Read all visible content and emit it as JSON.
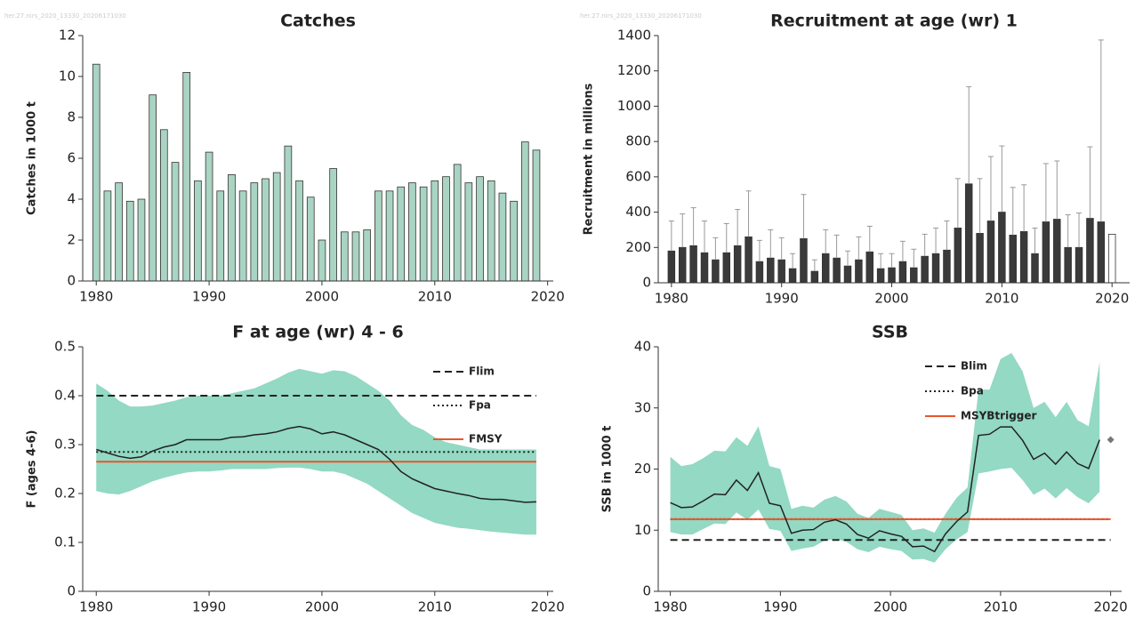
{
  "chart_data": [
    {
      "type": "bar",
      "title": "Catches",
      "watermark": "her.27.nirs_2020_13330_20206171030",
      "ylabel": "Catches in 1000 t",
      "x": [
        1980,
        1981,
        1982,
        1983,
        1984,
        1985,
        1986,
        1987,
        1988,
        1989,
        1990,
        1991,
        1992,
        1993,
        1994,
        1995,
        1996,
        1997,
        1998,
        1999,
        2000,
        2001,
        2002,
        2003,
        2004,
        2005,
        2006,
        2007,
        2008,
        2009,
        2010,
        2011,
        2012,
        2013,
        2014,
        2015,
        2016,
        2017,
        2018,
        2019
      ],
      "values": [
        10.6,
        4.4,
        4.8,
        3.9,
        4.0,
        9.1,
        7.4,
        5.8,
        10.2,
        4.9,
        6.3,
        4.4,
        5.2,
        4.4,
        4.8,
        5.0,
        5.3,
        6.6,
        4.9,
        4.1,
        2.0,
        5.5,
        2.4,
        2.4,
        2.5,
        4.4,
        4.4,
        4.6,
        4.8,
        4.6,
        4.9,
        5.1,
        5.7,
        4.8,
        5.1,
        4.9,
        4.3,
        3.9,
        6.8,
        6.4
      ],
      "color": "#a9d4c3",
      "xlim": [
        1978.8,
        2020.5
      ],
      "xticks": [
        1980,
        1990,
        2000,
        2010,
        2020
      ],
      "ylim": [
        0,
        12
      ],
      "yticks": [
        0,
        2,
        4,
        6,
        8,
        10,
        12
      ]
    },
    {
      "type": "bar",
      "title": "Recruitment at age (wr) 1",
      "watermark": "her.27.nirs_2020_13330_20206171030",
      "ylabel": "Recruitment in millions",
      "x": [
        1980,
        1981,
        1982,
        1983,
        1984,
        1985,
        1986,
        1987,
        1988,
        1989,
        1990,
        1991,
        1992,
        1993,
        1994,
        1995,
        1996,
        1997,
        1998,
        1999,
        2000,
        2001,
        2002,
        2003,
        2004,
        2005,
        2006,
        2007,
        2008,
        2009,
        2010,
        2011,
        2012,
        2013,
        2014,
        2015,
        2016,
        2017,
        2018,
        2019,
        2020
      ],
      "values": [
        180,
        200,
        210,
        170,
        130,
        170,
        210,
        260,
        120,
        140,
        130,
        80,
        250,
        65,
        165,
        140,
        95,
        130,
        175,
        80,
        85,
        120,
        85,
        150,
        165,
        185,
        310,
        560,
        280,
        350,
        400,
        270,
        290,
        165,
        345,
        360,
        200,
        200,
        365,
        345,
        275
      ],
      "upper": [
        350,
        390,
        425,
        350,
        255,
        335,
        415,
        520,
        240,
        300,
        255,
        165,
        500,
        130,
        300,
        270,
        180,
        260,
        320,
        165,
        165,
        235,
        190,
        275,
        310,
        350,
        590,
        1110,
        590,
        715,
        775,
        540,
        555,
        310,
        675,
        690,
        385,
        395,
        770,
        1375,
        null
      ],
      "color": "#3a3a3a",
      "last_color": "#ffffff",
      "error_color": "#999999",
      "xlim": [
        1978.8,
        2021.6
      ],
      "xticks": [
        1980,
        1990,
        2000,
        2010,
        2020
      ],
      "ylim": [
        0,
        1400
      ],
      "yticks": [
        0,
        200,
        400,
        600,
        800,
        1000,
        1200,
        1400
      ]
    },
    {
      "type": "line",
      "title": "F at age (wr) 4 - 6",
      "ylabel": "F (ages 4-6)",
      "x": [
        1980,
        1981,
        1982,
        1983,
        1984,
        1985,
        1986,
        1987,
        1988,
        1989,
        1990,
        1991,
        1992,
        1993,
        1994,
        1995,
        1996,
        1997,
        1998,
        1999,
        2000,
        2001,
        2002,
        2003,
        2004,
        2005,
        2006,
        2007,
        2008,
        2009,
        2010,
        2011,
        2012,
        2013,
        2014,
        2015,
        2016,
        2017,
        2018,
        2019
      ],
      "values": [
        0.29,
        0.283,
        0.276,
        0.272,
        0.275,
        0.287,
        0.295,
        0.3,
        0.31,
        0.31,
        0.31,
        0.31,
        0.315,
        0.316,
        0.32,
        0.322,
        0.326,
        0.333,
        0.337,
        0.332,
        0.322,
        0.326,
        0.32,
        0.31,
        0.3,
        0.29,
        0.27,
        0.245,
        0.23,
        0.22,
        0.21,
        0.205,
        0.2,
        0.196,
        0.19,
        0.188,
        0.188,
        0.185,
        0.182,
        0.183
      ],
      "upper": [
        0.425,
        0.41,
        0.39,
        0.378,
        0.378,
        0.38,
        0.385,
        0.39,
        0.397,
        0.4,
        0.4,
        0.4,
        0.405,
        0.41,
        0.415,
        0.425,
        0.435,
        0.447,
        0.455,
        0.45,
        0.445,
        0.452,
        0.45,
        0.44,
        0.425,
        0.41,
        0.39,
        0.36,
        0.34,
        0.33,
        0.315,
        0.305,
        0.3,
        0.295,
        0.29,
        0.29,
        0.29,
        0.29,
        0.29,
        0.29
      ],
      "lower": [
        0.205,
        0.2,
        0.198,
        0.205,
        0.215,
        0.225,
        0.232,
        0.238,
        0.243,
        0.245,
        0.245,
        0.247,
        0.25,
        0.25,
        0.25,
        0.25,
        0.252,
        0.253,
        0.253,
        0.25,
        0.245,
        0.245,
        0.24,
        0.23,
        0.22,
        0.205,
        0.19,
        0.175,
        0.16,
        0.15,
        0.14,
        0.135,
        0.13,
        0.128,
        0.125,
        0.122,
        0.12,
        0.118,
        0.116,
        0.116
      ],
      "color": "#222222",
      "band_color": "#93d9c3",
      "references": [
        {
          "name": "Flim",
          "value": 0.4,
          "style": "dashed",
          "color": "#222222"
        },
        {
          "name": "Fpa",
          "value": 0.285,
          "style": "dotted",
          "color": "#222222"
        },
        {
          "name": "FMSY",
          "value": 0.265,
          "style": "solid",
          "color": "#e8562a"
        }
      ],
      "legend": "upper right",
      "xlim": [
        1978.8,
        2020.5
      ],
      "xticks": [
        1980,
        1990,
        2000,
        2010,
        2020
      ],
      "ylim": [
        0,
        0.5
      ],
      "yticks": [
        0,
        0.1,
        0.2,
        0.3,
        0.4,
        0.5
      ]
    },
    {
      "type": "line",
      "title": "SSB",
      "ylabel": "SSB in 1000 t",
      "x": [
        1980,
        1981,
        1982,
        1983,
        1984,
        1985,
        1986,
        1987,
        1988,
        1989,
        1990,
        1991,
        1992,
        1993,
        1994,
        1995,
        1996,
        1997,
        1998,
        1999,
        2000,
        2001,
        2002,
        2003,
        2004,
        2005,
        2006,
        2007,
        2008,
        2009,
        2010,
        2011,
        2012,
        2013,
        2014,
        2015,
        2016,
        2017,
        2018,
        2019
      ],
      "values": [
        14.5,
        13.7,
        13.8,
        14.8,
        15.9,
        15.8,
        18.2,
        16.5,
        19.4,
        14.4,
        14.0,
        9.5,
        10.0,
        10.1,
        11.3,
        11.7,
        11.0,
        9.3,
        8.7,
        9.9,
        9.4,
        9.0,
        7.3,
        7.4,
        6.5,
        9.4,
        11.4,
        13.0,
        25.5,
        25.7,
        26.9,
        26.9,
        24.7,
        21.6,
        22.6,
        20.8,
        22.8,
        20.9,
        20.1,
        24.8
      ],
      "upper": [
        22,
        20.5,
        20.8,
        21.8,
        23,
        22.9,
        25.2,
        23.8,
        27,
        20.5,
        20,
        13.5,
        14,
        13.7,
        15,
        15.6,
        14.7,
        12.7,
        12.0,
        13.5,
        13,
        12.5,
        10,
        10.3,
        9.6,
        12.7,
        15.3,
        17,
        33,
        33,
        38,
        39,
        36,
        30,
        31,
        28.5,
        31,
        28,
        27,
        37.5
      ],
      "lower": [
        9.7,
        9.3,
        9.3,
        10.2,
        11.1,
        11.0,
        12.9,
        11.7,
        13.4,
        10.2,
        9.9,
        6.6,
        7.0,
        7.3,
        8.3,
        8.6,
        8.1,
        6.9,
        6.4,
        7.3,
        6.9,
        6.6,
        5.2,
        5.3,
        4.7,
        6.9,
        8.5,
        9.7,
        19.3,
        19.6,
        20.0,
        20.2,
        18.2,
        15.8,
        16.8,
        15.2,
        16.9,
        15.4,
        14.4,
        16.3
      ],
      "point": {
        "x": 2020,
        "value": 24.8,
        "color": "#777777"
      },
      "color": "#222222",
      "band_color": "#93d9c3",
      "references": [
        {
          "name": "Blim",
          "value": 8.4,
          "style": "dashed",
          "color": "#222222"
        },
        {
          "name": "Bpa",
          "value": 11.8,
          "style": "dotted",
          "color": "#222222"
        },
        {
          "name": "MSYBtrigger",
          "value": 11.8,
          "style": "solid",
          "color": "#e8562a"
        }
      ],
      "legend": "upper right",
      "xlim": [
        1978.9,
        2021
      ],
      "xticks": [
        1980,
        1990,
        2000,
        2010,
        2020
      ],
      "ylim": [
        0,
        40
      ],
      "yticks": [
        0,
        10,
        20,
        30,
        40
      ]
    }
  ]
}
